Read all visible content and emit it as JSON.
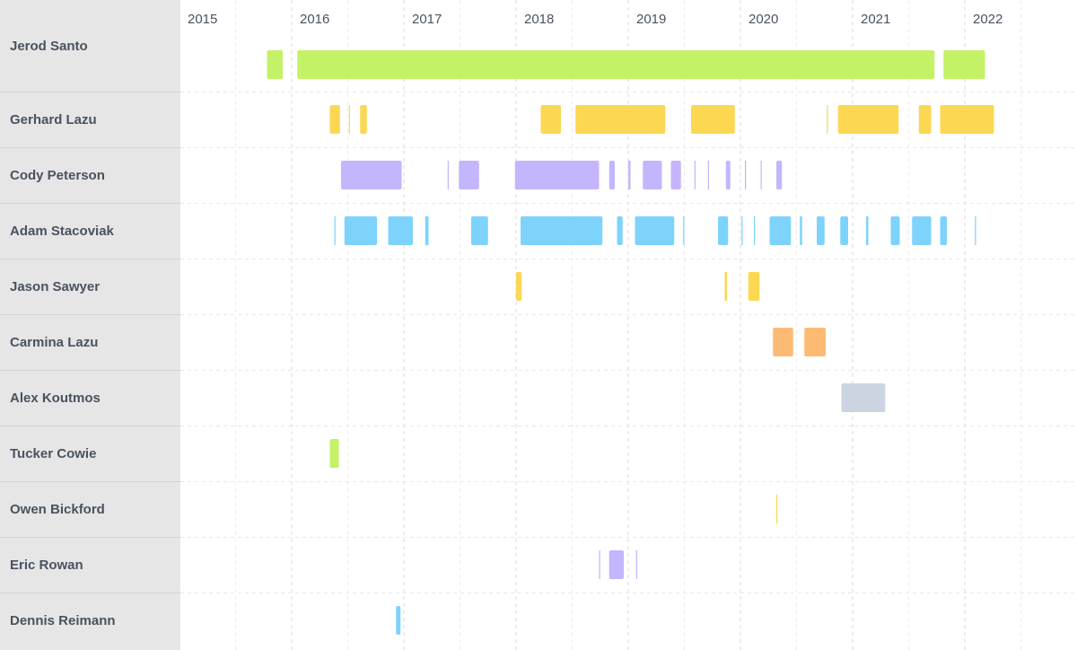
{
  "chart_data": {
    "type": "timeline",
    "x_axis": {
      "ticks": [
        "2015",
        "2016",
        "2017",
        "2018",
        "2019",
        "2020",
        "2021",
        "2022"
      ],
      "range": [
        2015.0,
        2022.99
      ]
    },
    "colors": {
      "green": "#c3f266",
      "yellow": "#fcd752",
      "purple": "#c4b5fd",
      "blue": "#7dd3fc",
      "orange": "#fdba74",
      "gray": "#cbd5e1"
    },
    "rows": [
      {
        "name": "Jerod Santo",
        "color": "#c3f266",
        "segments": [
          [
            2015.78,
            2015.92
          ],
          [
            2016.05,
            2021.73
          ],
          [
            2021.81,
            2022.18
          ]
        ]
      },
      {
        "name": "Gerhard Lazu",
        "color": "#fcd752",
        "segments": [
          [
            2016.34,
            2016.43
          ],
          [
            2016.51,
            2016.52
          ],
          [
            2016.61,
            2016.67
          ],
          [
            2018.22,
            2018.4
          ],
          [
            2018.53,
            2019.33
          ],
          [
            2019.56,
            2019.95
          ],
          [
            2020.77,
            2020.78
          ],
          [
            2020.87,
            2021.41
          ],
          [
            2021.59,
            2021.7
          ],
          [
            2021.78,
            2022.26
          ]
        ]
      },
      {
        "name": "Cody Peterson",
        "color": "#c4b5fd",
        "segments": [
          [
            2016.44,
            2016.98
          ],
          [
            2017.39,
            2017.4
          ],
          [
            2017.49,
            2017.67
          ],
          [
            2017.99,
            2018.74
          ],
          [
            2018.83,
            2018.88
          ],
          [
            2019.0,
            2019.02
          ],
          [
            2019.13,
            2019.3
          ],
          [
            2019.38,
            2019.47
          ],
          [
            2019.59,
            2019.6
          ],
          [
            2019.71,
            2019.72
          ],
          [
            2019.87,
            2019.91
          ],
          [
            2020.04,
            2020.05
          ],
          [
            2020.18,
            2020.19
          ],
          [
            2020.32,
            2020.37
          ]
        ]
      },
      {
        "name": "Adam Stacoviak",
        "color": "#7dd3fc",
        "segments": [
          [
            2016.38,
            2016.39
          ],
          [
            2016.47,
            2016.76
          ],
          [
            2016.86,
            2017.08
          ],
          [
            2017.19,
            2017.22
          ],
          [
            2017.6,
            2017.75
          ],
          [
            2018.04,
            2018.77
          ],
          [
            2018.9,
            2018.95
          ],
          [
            2019.06,
            2019.41
          ],
          [
            2019.49,
            2019.5
          ],
          [
            2019.8,
            2019.89
          ],
          [
            2020.01,
            2020.02
          ],
          [
            2020.12,
            2020.13
          ],
          [
            2020.26,
            2020.45
          ],
          [
            2020.53,
            2020.55
          ],
          [
            2020.68,
            2020.75
          ],
          [
            2020.89,
            2020.96
          ],
          [
            2021.12,
            2021.14
          ],
          [
            2021.34,
            2021.42
          ],
          [
            2021.53,
            2021.7
          ],
          [
            2021.78,
            2021.84
          ],
          [
            2022.09,
            2022.1
          ]
        ]
      },
      {
        "name": "Jason Sawyer",
        "color": "#fcd752",
        "segments": [
          [
            2018.0,
            2018.05
          ],
          [
            2019.86,
            2019.88
          ],
          [
            2020.07,
            2020.17
          ]
        ]
      },
      {
        "name": "Carmina Lazu",
        "color": "#fdba74",
        "segments": [
          [
            2020.29,
            2020.47
          ],
          [
            2020.57,
            2020.76
          ]
        ]
      },
      {
        "name": "Alex Koutmos",
        "color": "#cbd5e1",
        "segments": [
          [
            2020.9,
            2021.29
          ]
        ]
      },
      {
        "name": "Tucker Cowie",
        "color": "#c3f266",
        "segments": [
          [
            2016.34,
            2016.42
          ]
        ]
      },
      {
        "name": "Owen Bickford",
        "color": "#fcd752",
        "segments": [
          [
            2020.32,
            2020.33
          ]
        ]
      },
      {
        "name": "Eric Rowan",
        "color": "#c4b5fd",
        "segments": [
          [
            2018.74,
            2018.75
          ],
          [
            2018.83,
            2018.96
          ],
          [
            2019.07,
            2019.08
          ]
        ]
      },
      {
        "name": "Dennis Reimann",
        "color": "#7dd3fc",
        "segments": [
          [
            2016.93,
            2016.97
          ]
        ]
      }
    ],
    "grid": true,
    "title": "",
    "xlabel": "",
    "ylabel": ""
  }
}
